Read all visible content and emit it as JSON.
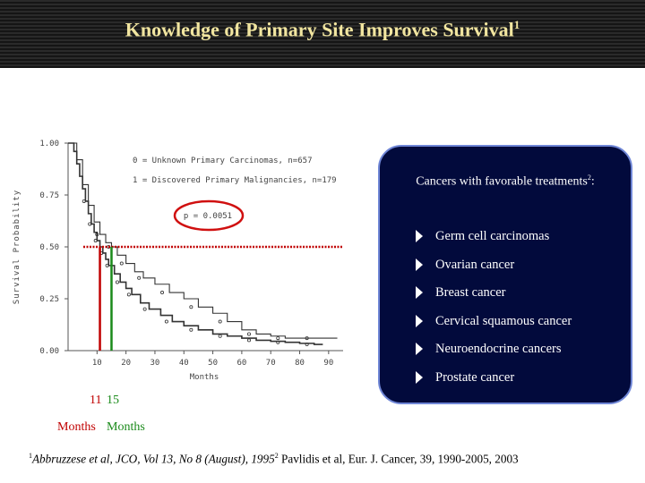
{
  "slide": {
    "title": "Knowledge of Primary Site Improves Survival",
    "title_sup": "1"
  },
  "chart_data": {
    "type": "line",
    "ylabel": "Survival Probability",
    "xlabel": "Months",
    "xlim": [
      0,
      95
    ],
    "ylim": [
      0,
      1
    ],
    "x_ticks": [
      10,
      20,
      30,
      40,
      50,
      60,
      70,
      80,
      90
    ],
    "y_ticks": [
      "0.00",
      "0.25",
      "0.50",
      "0.75",
      "1.00"
    ],
    "legend": [
      "0 = Unknown Primary Carcinomas, n=657",
      "1 = Discovered Primary Malignancies, n=179"
    ],
    "annotation": "p = 0.0051",
    "series": [
      {
        "x": [
          0,
          2,
          3,
          4,
          5,
          6,
          7,
          8,
          9,
          10,
          11,
          12,
          13,
          14,
          16,
          18,
          20,
          22,
          25,
          28,
          32,
          36,
          40,
          45,
          50,
          55,
          60,
          65,
          70,
          75,
          80,
          85,
          88
        ],
        "y": [
          1.0,
          0.96,
          0.9,
          0.84,
          0.78,
          0.72,
          0.66,
          0.61,
          0.57,
          0.53,
          0.5,
          0.47,
          0.44,
          0.41,
          0.37,
          0.33,
          0.3,
          0.27,
          0.23,
          0.2,
          0.17,
          0.14,
          0.12,
          0.1,
          0.08,
          0.07,
          0.06,
          0.05,
          0.045,
          0.04,
          0.035,
          0.03,
          0.03
        ]
      },
      {
        "x": [
          0,
          3,
          5,
          7,
          9,
          11,
          13,
          15,
          17,
          20,
          23,
          26,
          30,
          35,
          40,
          45,
          50,
          55,
          60,
          65,
          70,
          75,
          80,
          85,
          90
        ],
        "y": [
          1.0,
          0.92,
          0.8,
          0.7,
          0.62,
          0.56,
          0.52,
          0.5,
          0.46,
          0.42,
          0.38,
          0.35,
          0.32,
          0.28,
          0.25,
          0.21,
          0.18,
          0.14,
          0.1,
          0.08,
          0.07,
          0.06,
          0.06,
          0.06,
          0.06
        ]
      }
    ],
    "median_line_y": 0.5,
    "median_markers": [
      {
        "x": 11,
        "label": "11",
        "color": "#c00000"
      },
      {
        "x": 15,
        "label": "15",
        "color": "#1a8a1a"
      }
    ]
  },
  "months_labels": {
    "left": "Months",
    "right": "Months"
  },
  "panel": {
    "heading": "Cancers with favorable treatments",
    "heading_sup": "2",
    "heading_suffix": ":",
    "items": [
      "Germ cell carcinomas",
      "Ovarian cancer",
      "Breast cancer",
      "Cervical squamous cancer",
      "Neuroendocrine cancers",
      "Prostate cancer"
    ]
  },
  "footnote": {
    "sup1": "1",
    "ref1": "Abbruzzese et al, JCO, Vol 13, No 8 (August), 1995",
    "sup2": "2",
    "ref2": "Pavlidis et al, Eur. J. Cancer, 39, 1990-2005, 2003"
  },
  "colors": {
    "median_line": "#d01010",
    "panel_bg": "#020a3c",
    "title": "#f2e6a0"
  }
}
